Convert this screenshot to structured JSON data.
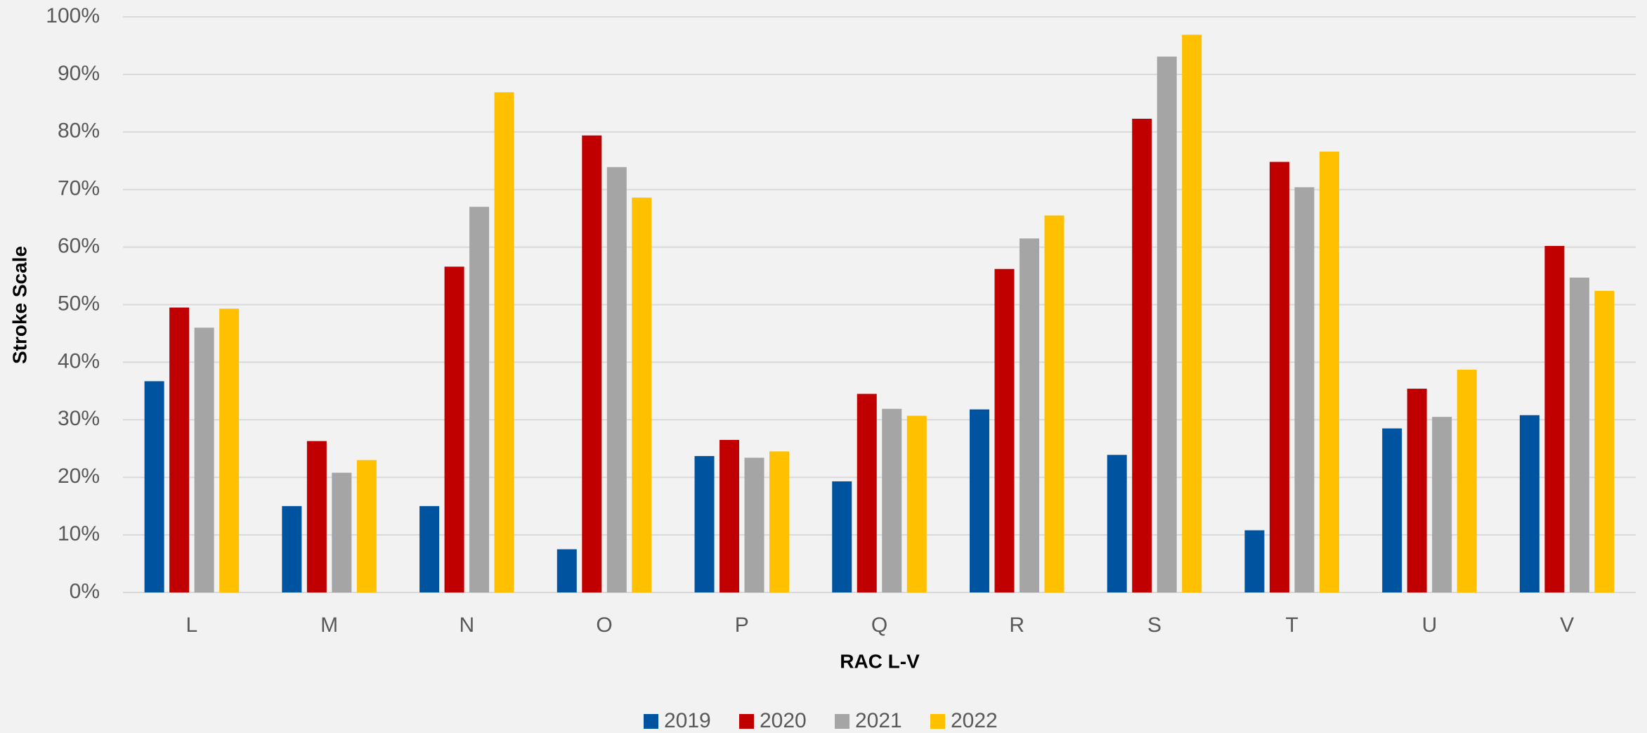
{
  "chart_data": {
    "type": "bar",
    "x_label": "RAC L-V",
    "y_label": "Stroke Scale",
    "categories": [
      "L",
      "M",
      "N",
      "O",
      "P",
      "Q",
      "R",
      "S",
      "T",
      "U",
      "V"
    ],
    "series": [
      {
        "name": "2019",
        "color": "#00539f",
        "values": [
          36.7,
          15,
          15,
          7.5,
          23.7,
          19.3,
          31.8,
          23.9,
          10.8,
          28.5,
          30.8
        ]
      },
      {
        "name": "2020",
        "color": "#c00000",
        "values": [
          49.5,
          26.3,
          56.6,
          79.4,
          26.5,
          34.5,
          56.2,
          82.3,
          74.8,
          35.4,
          60.2
        ]
      },
      {
        "name": "2021",
        "color": "#a5a5a5",
        "values": [
          46,
          20.8,
          67,
          73.9,
          23.4,
          31.9,
          61.5,
          93.1,
          70.4,
          30.5,
          54.7
        ]
      },
      {
        "name": "2022",
        "color": "#ffc000",
        "values": [
          49.3,
          23,
          86.9,
          68.6,
          24.5,
          30.7,
          65.5,
          96.9,
          76.6,
          38.7,
          52.4
        ]
      }
    ],
    "ylim": [
      0,
      100
    ],
    "yticks": [
      {
        "value": 0,
        "label": "0%"
      },
      {
        "value": 10,
        "label": "10%"
      },
      {
        "value": 20,
        "label": "20%"
      },
      {
        "value": 30,
        "label": "30%"
      },
      {
        "value": 40,
        "label": "40%"
      },
      {
        "value": 50,
        "label": "50%"
      },
      {
        "value": 60,
        "label": "60%"
      },
      {
        "value": 70,
        "label": "70%"
      },
      {
        "value": 80,
        "label": "80%"
      },
      {
        "value": 90,
        "label": "90%"
      },
      {
        "value": 100,
        "label": "100%"
      }
    ],
    "grid": true,
    "legend": "bottom"
  }
}
